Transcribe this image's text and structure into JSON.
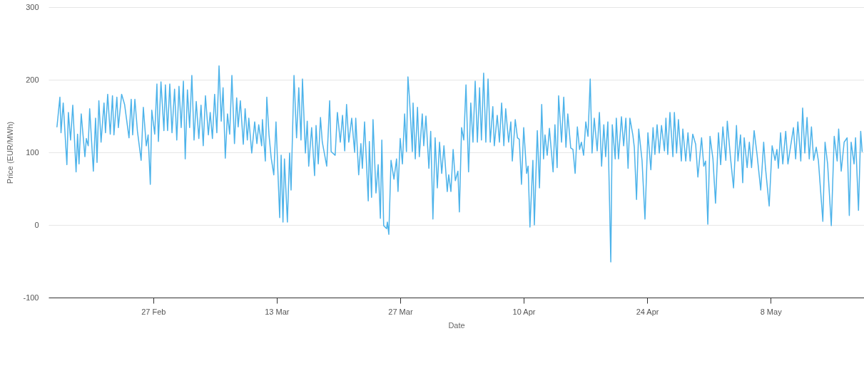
{
  "chart_data": {
    "type": "line",
    "xlabel": "Date",
    "ylabel": "Price (EUR/MWh)",
    "xlim": [
      "--02-15T03:00",
      "--05-18T14:00"
    ],
    "xticks": [
      {
        "value": "--02-27",
        "label": "27 Feb"
      },
      {
        "value": "--03-13",
        "label": "13 Mar"
      },
      {
        "value": "--03-27",
        "label": "27 Mar"
      },
      {
        "value": "--04-10",
        "label": "10 Apr"
      },
      {
        "value": "--04-24",
        "label": "24 Apr"
      },
      {
        "value": "--05-08",
        "label": "8 May"
      }
    ],
    "ylim": [
      -100,
      300
    ],
    "yticks": [
      -100,
      0,
      100,
      200,
      300
    ],
    "grid": "y",
    "x": [
      "--02-16T02:00",
      "--02-16T10:00",
      "--02-16T13:00",
      "--02-16T19:00",
      "--02-17T05:00",
      "--02-17T09:00",
      "--02-17T15:00",
      "--02-17T21:00",
      "--02-18T06:00",
      "--02-18T10:00",
      "--02-18T14:00",
      "--02-18T20:00",
      "--02-19T06:00",
      "--02-19T10:00",
      "--02-19T15:00",
      "--02-19T19:00",
      "--02-20T05:00",
      "--02-20T11:00",
      "--02-20T15:00",
      "--02-20T20:00",
      "--02-21T02:00",
      "--02-21T10:00",
      "--02-21T14:00",
      "--02-21T20:00",
      "--02-22T03:00",
      "--02-22T09:00",
      "--02-22T13:00",
      "--02-22T21:00",
      "--02-23T01:00",
      "--02-23T10:00",
      "--02-23T18:00",
      "--02-24T06:00",
      "--02-24T12:00",
      "--02-24T16:00",
      "--02-24T22:00",
      "--02-25T05:00",
      "--02-25T15:00",
      "--02-25T21:00",
      "--02-26T05:00",
      "--02-26T10:00",
      "--02-26T16:00",
      "--02-26T20:00",
      "--02-27T04:00",
      "--02-27T10:00",
      "--02-27T14:00",
      "--02-27T21:00",
      "--02-28T05:00",
      "--02-28T09:00",
      "--02-28T15:00",
      "--02-28T21:00",
      "--03-01T03:00",
      "--03-01T10:00",
      "--03-01T16:00",
      "--03-01T22:00",
      "--03-02T04:00",
      "--03-02T10:00",
      "--03-02T15:00",
      "--03-02T21:00",
      "--03-03T03:00",
      "--03-03T09:00",
      "--03-03T15:00",
      "--03-03T21:00",
      "--03-04T04:00",
      "--03-04T10:00",
      "--03-04T16:00",
      "--03-04T22:00",
      "--03-05T06:00",
      "--03-05T11:00",
      "--03-05T17:00",
      "--03-05T23:00",
      "--03-06T05:00",
      "--03-06T11:00",
      "--03-06T17:00",
      "--03-06T22:00",
      "--03-07T04:00",
      "--03-07T10:00",
      "--03-07T16:00",
      "--03-07T22:00",
      "--03-08T05:00",
      "--03-08T11:00",
      "--03-08T15:00",
      "--03-08T21:00",
      "--03-09T05:00",
      "--03-09T10:00",
      "--03-09T16:00",
      "--03-09T20:00",
      "--03-10T04:00",
      "--03-10T12:00",
      "--03-10T18:00",
      "--03-10T23:00",
      "--03-11T07:00",
      "--03-11T09:00",
      "--03-11T17:00",
      "--03-11T21:00",
      "--03-12T03:00",
      "--03-12T09:00",
      "--03-12T16:00",
      "--03-12T22:00",
      "--03-13T08:00",
      "--03-13T12:00",
      "--03-13T17:00",
      "--03-13T21:00",
      "--03-14T05:00",
      "--03-14T11:00",
      "--03-14T15:00",
      "--03-14T23:00",
      "--03-15T06:00",
      "--03-15T12:00",
      "--03-15T18:00",
      "--03-15T22:00",
      "--03-16T06:00",
      "--03-16T11:00",
      "--03-16T15:00",
      "--03-16T23:00",
      "--03-17T07:00",
      "--03-17T11:00",
      "--03-17T17:00",
      "--03-17T23:00",
      "--03-18T04:00",
      "--03-18T16:00",
      "--03-19T00:00",
      "--03-19T04:00",
      "--03-19T15:00",
      "--03-19T21:00",
      "--03-20T05:00",
      "--03-20T11:00",
      "--03-20T17:00",
      "--03-20T22:00",
      "--03-21T04:00",
      "--03-21T12:00",
      "--03-21T20:00",
      "--03-21T23:00",
      "--03-22T07:00",
      "--03-22T13:00",
      "--03-22T17:00",
      "--03-22T23:00",
      "--03-23T09:00",
      "--03-23T12:00",
      "--03-23T18:00",
      "--03-23T22:00",
      "--03-24T06:00",
      "--03-24T12:00",
      "--03-24T18:00",
      "--03-24T22:00",
      "--03-25T03:00",
      "--03-25T11:00",
      "--03-25T13:00",
      "--03-25T17:00",
      "--03-25T23:00",
      "--03-26T07:00",
      "--03-26T14:00",
      "--03-26T18:00",
      "--03-27T00:00",
      "--03-27T06:00",
      "--03-27T12:00",
      "--03-27T17:00",
      "--03-27T21:00",
      "--03-28T01:00",
      "--03-28T09:00",
      "--03-28T11:00",
      "--03-28T17:00",
      "--03-28T23:00",
      "--03-29T04:00",
      "--03-29T12:00",
      "--03-29T16:00",
      "--03-29T22:00",
      "--03-30T06:00",
      "--03-30T11:00",
      "--03-30T17:00",
      "--03-30T23:00",
      "--03-31T05:00",
      "--03-31T11:00",
      "--03-31T17:00",
      "--03-31T23:00",
      "--04-01T08:00",
      "--04-01T12:00",
      "--04-01T18:00",
      "--04-02T00:00",
      "--04-02T06:00",
      "--04-02T13:00",
      "--04-02T17:00",
      "--04-02T23:00",
      "--04-03T05:00",
      "--04-03T11:00",
      "--04-03T18:00",
      "--04-04T00:00",
      "--04-04T06:00",
      "--04-04T12:00",
      "--04-04T18:00",
      "--04-05T00:00",
      "--04-05T05:00",
      "--04-05T11:00",
      "--04-05T17:00",
      "--04-05T23:00",
      "--04-06T05:00",
      "--04-06T12:00",
      "--04-06T16:00",
      "--04-07T00:00",
      "--04-07T06:00",
      "--04-07T12:00",
      "--04-07T18:00",
      "--04-07T23:00",
      "--04-08T07:00",
      "--04-08T13:00",
      "--04-08T17:00",
      "--04-09T01:00",
      "--04-09T07:00",
      "--04-09T12:00",
      "--04-09T18:00",
      "--04-10T00:00",
      "--04-10T08:00",
      "--04-10T12:00",
      "--04-10T17:00",
      "--04-11T01:00",
      "--04-11T05:00",
      "--04-11T13:00",
      "--04-11T19:00",
      "--04-12T01:00",
      "--04-12T06:00",
      "--04-12T10:00",
      "--04-12T16:00",
      "--04-12T22:00",
      "--04-13T08:00",
      "--04-13T13:00",
      "--04-13T19:00",
      "--04-13T23:00",
      "--04-14T07:00",
      "--04-14T13:00",
      "--04-14T19:00",
      "--04-15T00:00",
      "--04-15T08:00",
      "--04-15T14:00",
      "--04-15T20:00",
      "--04-16T02:00",
      "--04-16T08:00",
      "--04-16T13:00",
      "--04-16T19:00",
      "--04-17T01:00",
      "--04-17T07:00",
      "--04-17T13:00",
      "--04-17T18:00",
      "--04-18T00:00",
      "--04-18T08:00",
      "--04-18T14:00",
      "--04-18T20:00",
      "--04-19T02:00",
      "--04-19T07:00",
      "--04-19T13:00",
      "--04-19T21:00",
      "--04-20T01:00",
      "--04-20T09:00",
      "--04-20T12:00",
      "--04-20T18:00",
      "--04-21T02:00",
      "--04-21T08:00",
      "--04-21T14:00",
      "--04-21T20:00",
      "--04-22T01:00",
      "--04-22T09:00",
      "--04-22T13:00",
      "--04-22T19:00",
      "--04-23T01:00",
      "--04-23T10:00",
      "--04-23T18:00",
      "--04-24T02:00",
      "--04-24T10:00",
      "--04-24T16:00",
      "--04-24T21:00",
      "--04-25T03:00",
      "--04-25T09:00",
      "--04-25T15:00",
      "--04-25T23:00",
      "--04-26T03:00",
      "--04-26T08:00",
      "--04-26T14:00",
      "--04-26T22:00",
      "--04-27T02:00",
      "--04-27T08:00",
      "--04-27T13:00",
      "--04-27T21:00",
      "--04-28T01:00",
      "--04-28T09:00",
      "--04-28T15:00",
      "--04-28T21:00",
      "--04-29T04:00",
      "--04-29T12:00",
      "--04-29T18:00",
      "--04-30T04:00",
      "--04-30T10:00",
      "--04-30T15:00",
      "--04-30T21:00",
      "--05-01T03:00",
      "--05-01T11:00",
      "--05-01T18:00",
      "--05-02T02:00",
      "--05-02T08:00",
      "--05-02T14:00",
      "--05-02T22:00",
      "--05-03T02:00",
      "--05-03T11:00",
      "--05-03T19:00",
      "--05-04T03:00",
      "--05-04T07:00",
      "--05-04T14:00",
      "--05-04T20:00",
      "--05-05T00:00",
      "--05-05T08:00",
      "--05-05T14:00",
      "--05-05T20:00",
      "--05-06T03:00",
      "--05-06T11:00",
      "--05-06T21:00",
      "--05-07T05:00",
      "--05-07T10:00",
      "--05-07T20:00",
      "--05-08T04:00",
      "--05-08T12:00",
      "--05-08T17:00",
      "--05-08T21:00",
      "--05-09T03:00",
      "--05-09T09:00",
      "--05-09T17:00",
      "--05-09T23:00",
      "--05-10T14:00",
      "--05-10T20:00",
      "--05-11T02:00",
      "--05-11T10:00",
      "--05-11T15:00",
      "--05-11T21:00",
      "--05-12T03:00",
      "--05-12T09:00",
      "--05-12T15:00",
      "--05-12T21:00",
      "--05-13T04:00",
      "--05-13T10:00",
      "--05-13T22:00",
      "--05-14T04:00",
      "--05-14T11:00",
      "--05-14T21:00",
      "--05-15T05:00",
      "--05-15T13:00",
      "--05-15T17:00",
      "--05-16T00:00",
      "--05-16T08:00",
      "--05-16T16:00",
      "--05-16T22:00",
      "--05-17T03:00",
      "--05-17T11:00",
      "--05-17T15:00",
      "--05-17T23:00",
      "--05-18T05:00",
      "--05-18T09:00"
    ],
    "series": [
      {
        "color": "#4db3ea",
        "values": [
          135,
          176,
          127,
          168,
          83,
          155,
          117,
          165,
          73,
          125,
          84,
          153,
          94,
          119,
          109,
          160,
          74,
          147,
          86,
          171,
          114,
          168,
          127,
          180,
          125,
          178,
          124,
          176,
          134,
          180,
          166,
          120,
          173,
          124,
          173,
          129,
          89,
          162,
          109,
          124,
          56,
          158,
          125,
          194,
          115,
          197,
          130,
          193,
          130,
          194,
          127,
          187,
          117,
          191,
          134,
          198,
          91,
          186,
          134,
          206,
          117,
          170,
          119,
          165,
          109,
          178,
          124,
          155,
          119,
          180,
          127,
          219,
          143,
          189,
          92,
          153,
          125,
          206,
          112,
          175,
          135,
          171,
          111,
          160,
          117,
          147,
          99,
          142,
          112,
          138,
          109,
          145,
          88,
          176,
          124,
          92,
          69,
          142,
          10,
          96,
          4,
          91,
          4,
          99,
          48,
          206,
          120,
          189,
          117,
          201,
          99,
          143,
          81,
          134,
          68,
          137,
          84,
          148,
          114,
          81,
          171,
          101,
          96,
          155,
          114,
          151,
          102,
          166,
          114,
          147,
          100,
          147,
          69,
          112,
          78,
          142,
          33,
          115,
          38,
          145,
          44,
          83,
          9,
          117,
          -1,
          -5,
          4,
          -13,
          89,
          63,
          91,
          46,
          119,
          84,
          153,
          101,
          204,
          176,
          101,
          168,
          91,
          162,
          94,
          153,
          109,
          150,
          78,
          129,
          8,
          120,
          51,
          114,
          71,
          109,
          46,
          69,
          46,
          104,
          61,
          74,
          18,
          134,
          117,
          193,
          73,
          168,
          114,
          198,
          114,
          189,
          117,
          209,
          114,
          201,
          114,
          163,
          109,
          151,
          114,
          168,
          109,
          160,
          114,
          142,
          88,
          145,
          120,
          118,
          56,
          134,
          71,
          81,
          -3,
          89,
          0,
          130,
          51,
          166,
          91,
          124,
          96,
          133,
          73,
          138,
          79,
          178,
          114,
          176,
          107,
          153,
          106,
          104,
          71,
          135,
          104,
          114,
          96,
          142,
          122,
          201,
          99,
          147,
          102,
          155,
          81,
          138,
          94,
          142,
          -51,
          138,
          91,
          147,
          91,
          149,
          109,
          147,
          78,
          147,
          124,
          107,
          35,
          132,
          89,
          8,
          127,
          76,
          134,
          97,
          138,
          99,
          137,
          102,
          147,
          97,
          155,
          94,
          155,
          99,
          145,
          88,
          132,
          88,
          127,
          88,
          125,
          111,
          66,
          120,
          81,
          88,
          1,
          122,
          91,
          30,
          127,
          83,
          135,
          89,
          143,
          91,
          51,
          137,
          88,
          124,
          58,
          120,
          79,
          114,
          79,
          130,
          97,
          48,
          114,
          78,
          26,
          109,
          89,
          104,
          78,
          127,
          84,
          129,
          84,
          134,
          91,
          142,
          88,
          161,
          99,
          148,
          91,
          135,
          89,
          107,
          88,
          5,
          114,
          84,
          -1,
          122,
          88,
          132,
          74,
          114,
          120,
          13,
          114,
          84,
          120,
          20,
          129,
          101
        ]
      }
    ]
  }
}
